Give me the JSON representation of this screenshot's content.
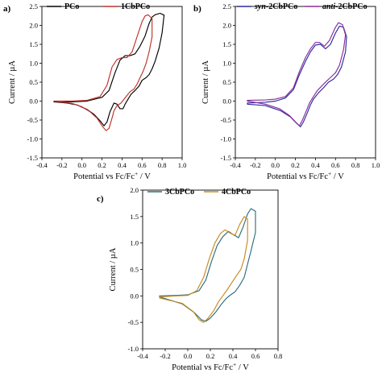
{
  "chart_data": [
    {
      "panel": "a)",
      "type": "line",
      "xlabel_parts": [
        "Potential vs Fc/Fc",
        "+",
        " / V"
      ],
      "ylabel": "Current / µA",
      "xlim": [
        -0.4,
        1.0
      ],
      "ylim": [
        -1.5,
        2.5
      ],
      "xticks": [
        "-0.4",
        "-0.2",
        "0.0",
        "0.2",
        "0.4",
        "0.6",
        "0.8",
        "1.0"
      ],
      "yticks": [
        "-1.5",
        "-1.0",
        "-0.5",
        "0.0",
        "0.5",
        "1.0",
        "1.5",
        "2.0",
        "2.5"
      ],
      "legend_position": "top",
      "series": [
        {
          "name": "PCo",
          "name_style": "plain",
          "color": "#000000",
          "points": [
            [
              -0.28,
              -0.02
            ],
            [
              -0.1,
              -0.02
            ],
            [
              0.05,
              0.0
            ],
            [
              0.2,
              0.1
            ],
            [
              0.27,
              0.28
            ],
            [
              0.33,
              0.75
            ],
            [
              0.38,
              1.08
            ],
            [
              0.43,
              1.2
            ],
            [
              0.48,
              1.2
            ],
            [
              0.53,
              1.25
            ],
            [
              0.58,
              1.45
            ],
            [
              0.63,
              1.72
            ],
            [
              0.67,
              2.05
            ],
            [
              0.7,
              2.22
            ],
            [
              0.73,
              2.28
            ],
            [
              0.78,
              2.32
            ],
            [
              0.82,
              2.27
            ],
            [
              0.8,
              1.8
            ],
            [
              0.77,
              1.4
            ],
            [
              0.73,
              1.05
            ],
            [
              0.7,
              0.85
            ],
            [
              0.67,
              0.7
            ],
            [
              0.64,
              0.62
            ],
            [
              0.6,
              0.55
            ],
            [
              0.57,
              0.4
            ],
            [
              0.53,
              0.28
            ],
            [
              0.49,
              0.18
            ],
            [
              0.46,
              0.05
            ],
            [
              0.43,
              -0.08
            ],
            [
              0.41,
              -0.2
            ],
            [
              0.38,
              -0.2
            ],
            [
              0.35,
              -0.08
            ],
            [
              0.32,
              -0.05
            ],
            [
              0.28,
              -0.28
            ],
            [
              0.25,
              -0.55
            ],
            [
              0.22,
              -0.65
            ],
            [
              0.18,
              -0.52
            ],
            [
              0.12,
              -0.35
            ],
            [
              0.05,
              -0.22
            ],
            [
              -0.05,
              -0.1
            ],
            [
              -0.15,
              -0.05
            ],
            [
              -0.28,
              -0.02
            ]
          ]
        },
        {
          "name": "1CbPCo",
          "name_style": "plain",
          "color": "#c0322b",
          "points": [
            [
              -0.28,
              0.0
            ],
            [
              -0.1,
              0.0
            ],
            [
              0.05,
              0.02
            ],
            [
              0.18,
              0.12
            ],
            [
              0.25,
              0.42
            ],
            [
              0.3,
              0.9
            ],
            [
              0.35,
              1.1
            ],
            [
              0.4,
              1.15
            ],
            [
              0.45,
              1.15
            ],
            [
              0.5,
              1.3
            ],
            [
              0.55,
              1.7
            ],
            [
              0.6,
              2.1
            ],
            [
              0.63,
              2.25
            ],
            [
              0.66,
              2.28
            ],
            [
              0.7,
              2.18
            ],
            [
              0.7,
              1.7
            ],
            [
              0.67,
              1.3
            ],
            [
              0.64,
              1.0
            ],
            [
              0.61,
              0.78
            ],
            [
              0.58,
              0.62
            ],
            [
              0.55,
              0.45
            ],
            [
              0.52,
              0.32
            ],
            [
              0.48,
              0.25
            ],
            [
              0.45,
              0.15
            ],
            [
              0.42,
              0.05
            ],
            [
              0.39,
              -0.05
            ],
            [
              0.35,
              -0.12
            ],
            [
              0.32,
              -0.25
            ],
            [
              0.3,
              -0.45
            ],
            [
              0.27,
              -0.72
            ],
            [
              0.24,
              -0.78
            ],
            [
              0.2,
              -0.65
            ],
            [
              0.15,
              -0.45
            ],
            [
              0.08,
              -0.28
            ],
            [
              0.0,
              -0.15
            ],
            [
              -0.1,
              -0.06
            ],
            [
              -0.28,
              0.0
            ]
          ]
        }
      ]
    },
    {
      "panel": "b)",
      "type": "line",
      "xlabel_parts": [
        "Potential vs Fc/Fc",
        "+",
        " / V"
      ],
      "ylabel": "Current / µA",
      "xlim": [
        -0.4,
        1.0
      ],
      "ylim": [
        -1.5,
        2.5
      ],
      "xticks": [
        "-0.4",
        "-0.2",
        "0.0",
        "0.2",
        "0.4",
        "0.6",
        "0.8",
        "1.0"
      ],
      "yticks": [
        "-1.5",
        "-1.0",
        "-0.5",
        "0.0",
        "0.5",
        "1.0",
        "1.5",
        "2.0",
        "2.5"
      ],
      "legend_position": "top",
      "series": [
        {
          "name_prefix": "syn",
          "name_suffix": "-2CbPCo",
          "name_style": "italic-prefix",
          "color": "#2b2b9e",
          "points": [
            [
              -0.28,
              -0.05
            ],
            [
              -0.1,
              -0.03
            ],
            [
              0.0,
              0.0
            ],
            [
              0.1,
              0.08
            ],
            [
              0.18,
              0.3
            ],
            [
              0.24,
              0.7
            ],
            [
              0.3,
              1.05
            ],
            [
              0.35,
              1.3
            ],
            [
              0.4,
              1.48
            ],
            [
              0.45,
              1.5
            ],
            [
              0.5,
              1.38
            ],
            [
              0.55,
              1.5
            ],
            [
              0.6,
              1.8
            ],
            [
              0.64,
              1.98
            ],
            [
              0.68,
              1.95
            ],
            [
              0.71,
              1.7
            ],
            [
              0.7,
              1.3
            ],
            [
              0.66,
              0.9
            ],
            [
              0.62,
              0.7
            ],
            [
              0.58,
              0.58
            ],
            [
              0.53,
              0.5
            ],
            [
              0.48,
              0.35
            ],
            [
              0.43,
              0.22
            ],
            [
              0.38,
              0.05
            ],
            [
              0.35,
              -0.1
            ],
            [
              0.32,
              -0.3
            ],
            [
              0.28,
              -0.55
            ],
            [
              0.25,
              -0.68
            ],
            [
              0.21,
              -0.58
            ],
            [
              0.15,
              -0.42
            ],
            [
              0.05,
              -0.25
            ],
            [
              -0.1,
              -0.12
            ],
            [
              -0.28,
              -0.08
            ]
          ]
        },
        {
          "name_prefix": "anti",
          "name_suffix": "-2CbPCo",
          "name_style": "italic-prefix",
          "color": "#8a2b9e",
          "points": [
            [
              -0.28,
              0.02
            ],
            [
              -0.1,
              0.03
            ],
            [
              0.0,
              0.05
            ],
            [
              0.1,
              0.12
            ],
            [
              0.18,
              0.35
            ],
            [
              0.24,
              0.78
            ],
            [
              0.3,
              1.15
            ],
            [
              0.35,
              1.38
            ],
            [
              0.4,
              1.55
            ],
            [
              0.44,
              1.55
            ],
            [
              0.49,
              1.45
            ],
            [
              0.54,
              1.6
            ],
            [
              0.6,
              1.95
            ],
            [
              0.63,
              2.07
            ],
            [
              0.67,
              2.02
            ],
            [
              0.7,
              1.75
            ],
            [
              0.68,
              1.35
            ],
            [
              0.64,
              0.95
            ],
            [
              0.6,
              0.75
            ],
            [
              0.56,
              0.65
            ],
            [
              0.52,
              0.55
            ],
            [
              0.47,
              0.42
            ],
            [
              0.42,
              0.28
            ],
            [
              0.38,
              0.12
            ],
            [
              0.34,
              -0.05
            ],
            [
              0.31,
              -0.25
            ],
            [
              0.27,
              -0.5
            ],
            [
              0.24,
              -0.65
            ],
            [
              0.2,
              -0.55
            ],
            [
              0.14,
              -0.38
            ],
            [
              0.04,
              -0.2
            ],
            [
              -0.1,
              -0.08
            ],
            [
              -0.28,
              0.0
            ]
          ]
        }
      ]
    },
    {
      "panel": "c)",
      "type": "line",
      "xlabel_parts": [
        "Potential vs Fc/Fc",
        "+",
        " / V"
      ],
      "ylabel": "Current / µA",
      "xlim": [
        -0.4,
        0.8
      ],
      "ylim": [
        -1.0,
        2.0
      ],
      "xticks": [
        "-0.4",
        "-0.2",
        "0.0",
        "0.2",
        "0.4",
        "0.6",
        "0.8"
      ],
      "yticks": [
        "-1.0",
        "-0.5",
        "0.0",
        "0.5",
        "1.0",
        "1.5",
        "2.0"
      ],
      "legend_position": "top",
      "series": [
        {
          "name": "3CbPCo",
          "name_style": "plain",
          "color": "#2e6e7e",
          "points": [
            [
              -0.25,
              0.0
            ],
            [
              -0.1,
              0.01
            ],
            [
              0.0,
              0.02
            ],
            [
              0.1,
              0.1
            ],
            [
              0.16,
              0.3
            ],
            [
              0.21,
              0.65
            ],
            [
              0.26,
              0.95
            ],
            [
              0.31,
              1.12
            ],
            [
              0.36,
              1.22
            ],
            [
              0.41,
              1.15
            ],
            [
              0.45,
              1.1
            ],
            [
              0.49,
              1.3
            ],
            [
              0.53,
              1.55
            ],
            [
              0.56,
              1.65
            ],
            [
              0.6,
              1.6
            ],
            [
              0.6,
              1.2
            ],
            [
              0.56,
              0.85
            ],
            [
              0.53,
              0.6
            ],
            [
              0.5,
              0.35
            ],
            [
              0.46,
              0.2
            ],
            [
              0.42,
              0.08
            ],
            [
              0.38,
              0.02
            ],
            [
              0.34,
              -0.05
            ],
            [
              0.3,
              -0.15
            ],
            [
              0.25,
              -0.3
            ],
            [
              0.2,
              -0.42
            ],
            [
              0.16,
              -0.48
            ],
            [
              0.12,
              -0.45
            ],
            [
              0.06,
              -0.32
            ],
            [
              -0.05,
              -0.15
            ],
            [
              -0.25,
              -0.02
            ]
          ]
        },
        {
          "name": "4CbPCo",
          "name_style": "plain",
          "color": "#c88a1e",
          "points": [
            [
              -0.25,
              -0.02
            ],
            [
              -0.1,
              0.0
            ],
            [
              0.0,
              0.01
            ],
            [
              0.08,
              0.1
            ],
            [
              0.14,
              0.35
            ],
            [
              0.19,
              0.7
            ],
            [
              0.24,
              1.0
            ],
            [
              0.29,
              1.18
            ],
            [
              0.33,
              1.25
            ],
            [
              0.38,
              1.18
            ],
            [
              0.42,
              1.15
            ],
            [
              0.46,
              1.35
            ],
            [
              0.5,
              1.5
            ],
            [
              0.53,
              1.45
            ],
            [
              0.53,
              1.05
            ],
            [
              0.5,
              0.7
            ],
            [
              0.47,
              0.5
            ],
            [
              0.43,
              0.38
            ],
            [
              0.39,
              0.25
            ],
            [
              0.35,
              0.12
            ],
            [
              0.31,
              0.0
            ],
            [
              0.27,
              -0.12
            ],
            [
              0.23,
              -0.28
            ],
            [
              0.18,
              -0.42
            ],
            [
              0.14,
              -0.5
            ],
            [
              0.1,
              -0.45
            ],
            [
              0.05,
              -0.3
            ],
            [
              -0.05,
              -0.14
            ],
            [
              -0.25,
              -0.04
            ]
          ]
        }
      ]
    }
  ]
}
